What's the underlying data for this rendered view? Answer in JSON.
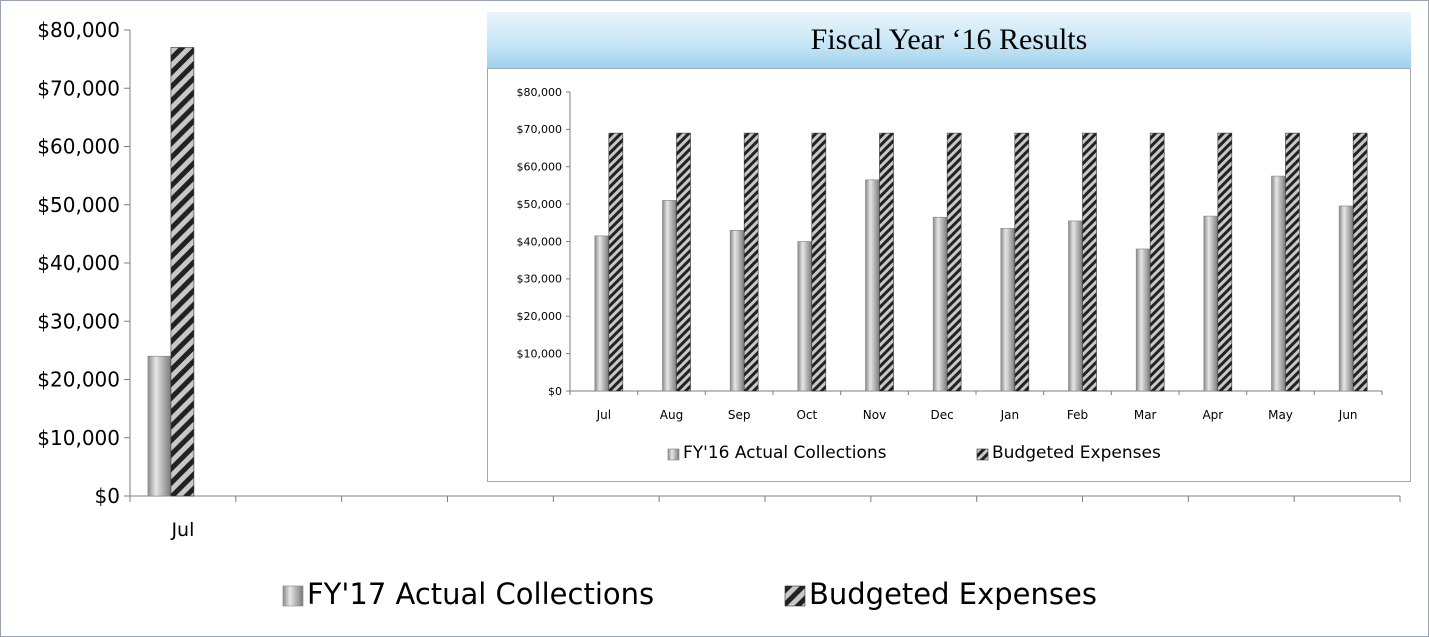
{
  "chart_data": [
    {
      "type": "bar",
      "categories": [
        "Jul",
        "",
        "",
        "",
        "",
        "",
        "",
        "",
        "",
        "",
        "",
        ""
      ],
      "series": [
        {
          "name": "FY'17 Actual Collections",
          "values": [
            24000,
            null,
            null,
            null,
            null,
            null,
            null,
            null,
            null,
            null,
            null,
            null
          ]
        },
        {
          "name": "Budgeted Expenses",
          "values": [
            77000,
            null,
            null,
            null,
            null,
            null,
            null,
            null,
            null,
            null,
            null,
            null
          ]
        }
      ],
      "ylim": [
        0,
        80000
      ],
      "yticks": [
        "$0",
        "$10,000",
        "$20,000",
        "$30,000",
        "$40,000",
        "$50,000",
        "$60,000",
        "$70,000",
        "$80,000"
      ],
      "legend_position": "bottom"
    },
    {
      "type": "bar",
      "title": "Fiscal Year ‘16 Results",
      "categories": [
        "Jul",
        "Aug",
        "Sep",
        "Oct",
        "Nov",
        "Dec",
        "Jan",
        "Feb",
        "Mar",
        "Apr",
        "May",
        "Jun"
      ],
      "series": [
        {
          "name": "FY'16 Actual Collections",
          "values": [
            41500,
            51000,
            43000,
            40000,
            56500,
            46500,
            43500,
            45500,
            38000,
            46800,
            57500,
            49500
          ]
        },
        {
          "name": "Budgeted Expenses",
          "values": [
            69000,
            69000,
            69000,
            69000,
            69000,
            69000,
            69000,
            69000,
            69000,
            69000,
            69000,
            69000
          ]
        }
      ],
      "ylim": [
        0,
        80000
      ],
      "yticks": [
        "$0",
        "$10,000",
        "$20,000",
        "$30,000",
        "$40,000",
        "$50,000",
        "$60,000",
        "$70,000",
        "$80,000"
      ],
      "legend_position": "bottom"
    }
  ],
  "colors": {
    "actual_light": "#d9d9d9",
    "actual_dark": "#6e6e6e",
    "hatch_dark": "#262626",
    "hatch_light": "#bfbfbf",
    "title_band": "#9fd2ee"
  }
}
